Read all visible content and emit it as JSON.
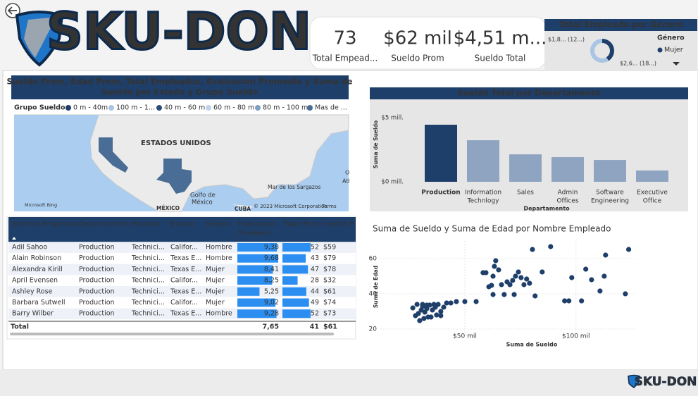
{
  "header": {
    "logo": "SKU-DON"
  },
  "kpis": [
    {
      "value": 73,
      "label": "Total Empead..."
    },
    {
      "value": "$62 mil",
      "label": "Sueldo Prom"
    },
    {
      "value": "$4,51 m...",
      "label": "Sueldo Total"
    }
  ],
  "map": {
    "title": [
      "Sueldo Prom, Edad Prom, Total Empleados, Evaluacion Promedio y Suma de",
      "Sueldo por Estado y Grupo Sueldo"
    ],
    "legend_title": "Grupo Sueldo",
    "legend": [
      {
        "name": "0 m - 40m",
        "color": "#1f3f6b"
      },
      {
        "name": "100 m - 1...",
        "color": "#a9c5e3"
      },
      {
        "name": "40 m - 60 m",
        "color": "#2b4c78"
      },
      {
        "name": "60 m - 80 m",
        "color": "#bcd3ea"
      },
      {
        "name": "80 m - 100 m",
        "color": "#7fa0c0"
      },
      {
        "name": "Mas de ...",
        "color": "#4a6d95"
      }
    ],
    "labels": [
      "ESTADOS UNIDOS",
      "Golfo de",
      "México",
      "Mar de los Sargazos",
      "MÉXICO",
      "CUBA",
      "© 2023 Microsoft Corporation",
      "Terms",
      "Microsoft Bing",
      "O",
      "Atl"
    ]
  },
  "table": {
    "columns": [
      "Nombre Empleado",
      "Departamento",
      "Posición",
      "Estado",
      "Género",
      "Evaluacion Promedio",
      "Edad Prom",
      "Sueldo P"
    ],
    "rows": [
      [
        "Adil Sahoo",
        "Production",
        "Technici...",
        "Califor...",
        "Hombre"
      ],
      [
        "Alain Robinson",
        "Production",
        "Technici...",
        "Texas E...",
        "Hombre"
      ],
      [
        "Alexandra Kirill",
        "Production",
        "Technici...",
        "Texas E...",
        "Mujer"
      ],
      [
        "April Evensen",
        "Production",
        "Technici...",
        "Califor...",
        "Mujer"
      ],
      [
        "Ashley Rose",
        "Production",
        "Technici...",
        "Texas E...",
        "Mujer"
      ],
      [
        "Barbara Sutwell",
        "Production",
        "Technici...",
        "Califor...",
        "Mujer"
      ],
      [
        "Barry Wilber",
        "Production",
        "Technici...",
        "Texas E...",
        "Hombre"
      ]
    ],
    "evaluacion": {
      "values": [
        9.38,
        9.68,
        8.41,
        8.25,
        5.25,
        9.02,
        9.28
      ],
      "value_labels": [
        "9,38",
        "9,68",
        "8,41",
        "8,25",
        "5,25",
        "9,02",
        "9,28"
      ],
      "color": "#2b8ef0"
    },
    "edad": {
      "values": [
        52,
        43,
        47,
        28,
        44,
        49,
        52
      ],
      "color": "#2b8ef0"
    },
    "sueldo": [
      "$59",
      "$79",
      "$78",
      "$32",
      "$61",
      "$74",
      "$73"
    ],
    "total": [
      "Total",
      "7,65",
      "41",
      "$61"
    ]
  },
  "chart_data": [
    {
      "type": "pie",
      "title": "Total Empleado por Género",
      "legend_title": "Género",
      "categories": [
        "Mujer",
        null
      ],
      "values": [
        1.85,
        2.66
      ],
      "value_labels": [
        "$1,8... (12...)",
        "$2,6... (18...)"
      ],
      "colors": [
        "#1f3f6b",
        "#a9c5e3"
      ]
    },
    {
      "type": "bar",
      "title": "Sueldo Total por Departamento",
      "xlabel": "Departamento",
      "ylabel": "Suma de Sueldo",
      "categories": [
        [
          "Production"
        ],
        [
          "Information",
          "Technlogy"
        ],
        [
          "Sales"
        ],
        [
          "Admin",
          "Offices"
        ],
        [
          "Software",
          "Engineering"
        ],
        [
          "Executive",
          "Office"
        ]
      ],
      "values": [
        4.45,
        3.24,
        2.14,
        1.92,
        1.7,
        0.88
      ],
      "colors": [
        "#1f3f6b",
        "#8ea4c0",
        "#8ea4c0",
        "#8ea4c0",
        "#8ea4c0",
        "#8ea4c0"
      ],
      "ylim": [
        0,
        5.4
      ],
      "yticks": [
        {
          "value": 0,
          "label": "$0 mill."
        },
        {
          "value": 5,
          "label": "$5 mill."
        }
      ]
    },
    {
      "type": "scatter",
      "title": "Suma de Sueldo y Suma de Edad por Nombre Empleado",
      "xlabel": "Suma de Sueldo",
      "ylabel": "Suma de Edad",
      "color": "#1f3f6b",
      "grid": true,
      "x": [
        26.6,
        27.8,
        29.1,
        30.4,
        31.0,
        32.0,
        32.9,
        34.2,
        35.4,
        36.7,
        38.0,
        39.2,
        40.5,
        41.8,
        29.7,
        31.6,
        33.5,
        34.8,
        37.3,
        39.2,
        43.7,
        46.2,
        50.0,
        55.1,
        28.5,
        31.0,
        32.9,
        36.1,
        58.2,
        59.5,
        60.8,
        62.0,
        62.7,
        63.3,
        63.9,
        65.2,
        66.5,
        67.7,
        69.0,
        70.3,
        71.5,
        72.8,
        74.1,
        75.3,
        76.6,
        77.8,
        79.1,
        80.4,
        81.6,
        84.8,
        88.6,
        72.2,
        62.7,
        94.9,
        96.8,
        98.1,
        102.5,
        104.4,
        107.0,
        110.8,
        112.7,
        113.3,
        122.2,
        123.7
      ],
      "y": [
        32,
        27.6,
        28.8,
        30.8,
        32.8,
        29.6,
        31.6,
        33.6,
        30.8,
        32.4,
        34,
        30,
        32.4,
        34.8,
        24.8,
        26,
        26.8,
        26.8,
        28,
        27.6,
        34.8,
        35.6,
        35.6,
        35.6,
        34,
        34,
        33.6,
        34,
        52,
        52,
        44,
        44.8,
        50,
        55.6,
        58.8,
        53.6,
        45.2,
        39.6,
        46.8,
        45.2,
        47.6,
        50,
        52.4,
        49.2,
        45.2,
        48.4,
        46,
        65.2,
        38.8,
        52.4,
        66.8,
        39.6,
        39.6,
        36,
        36,
        49.2,
        36,
        54,
        48,
        41.6,
        50,
        62,
        40,
        65.2
      ],
      "xlim": [
        12,
        127
      ],
      "ylim": [
        18,
        70
      ],
      "xticks": [
        {
          "value": 50,
          "label": "$50 mil"
        },
        {
          "value": 100,
          "label": "$100 mil"
        }
      ],
      "yticks": [
        20,
        40,
        60
      ]
    }
  ]
}
